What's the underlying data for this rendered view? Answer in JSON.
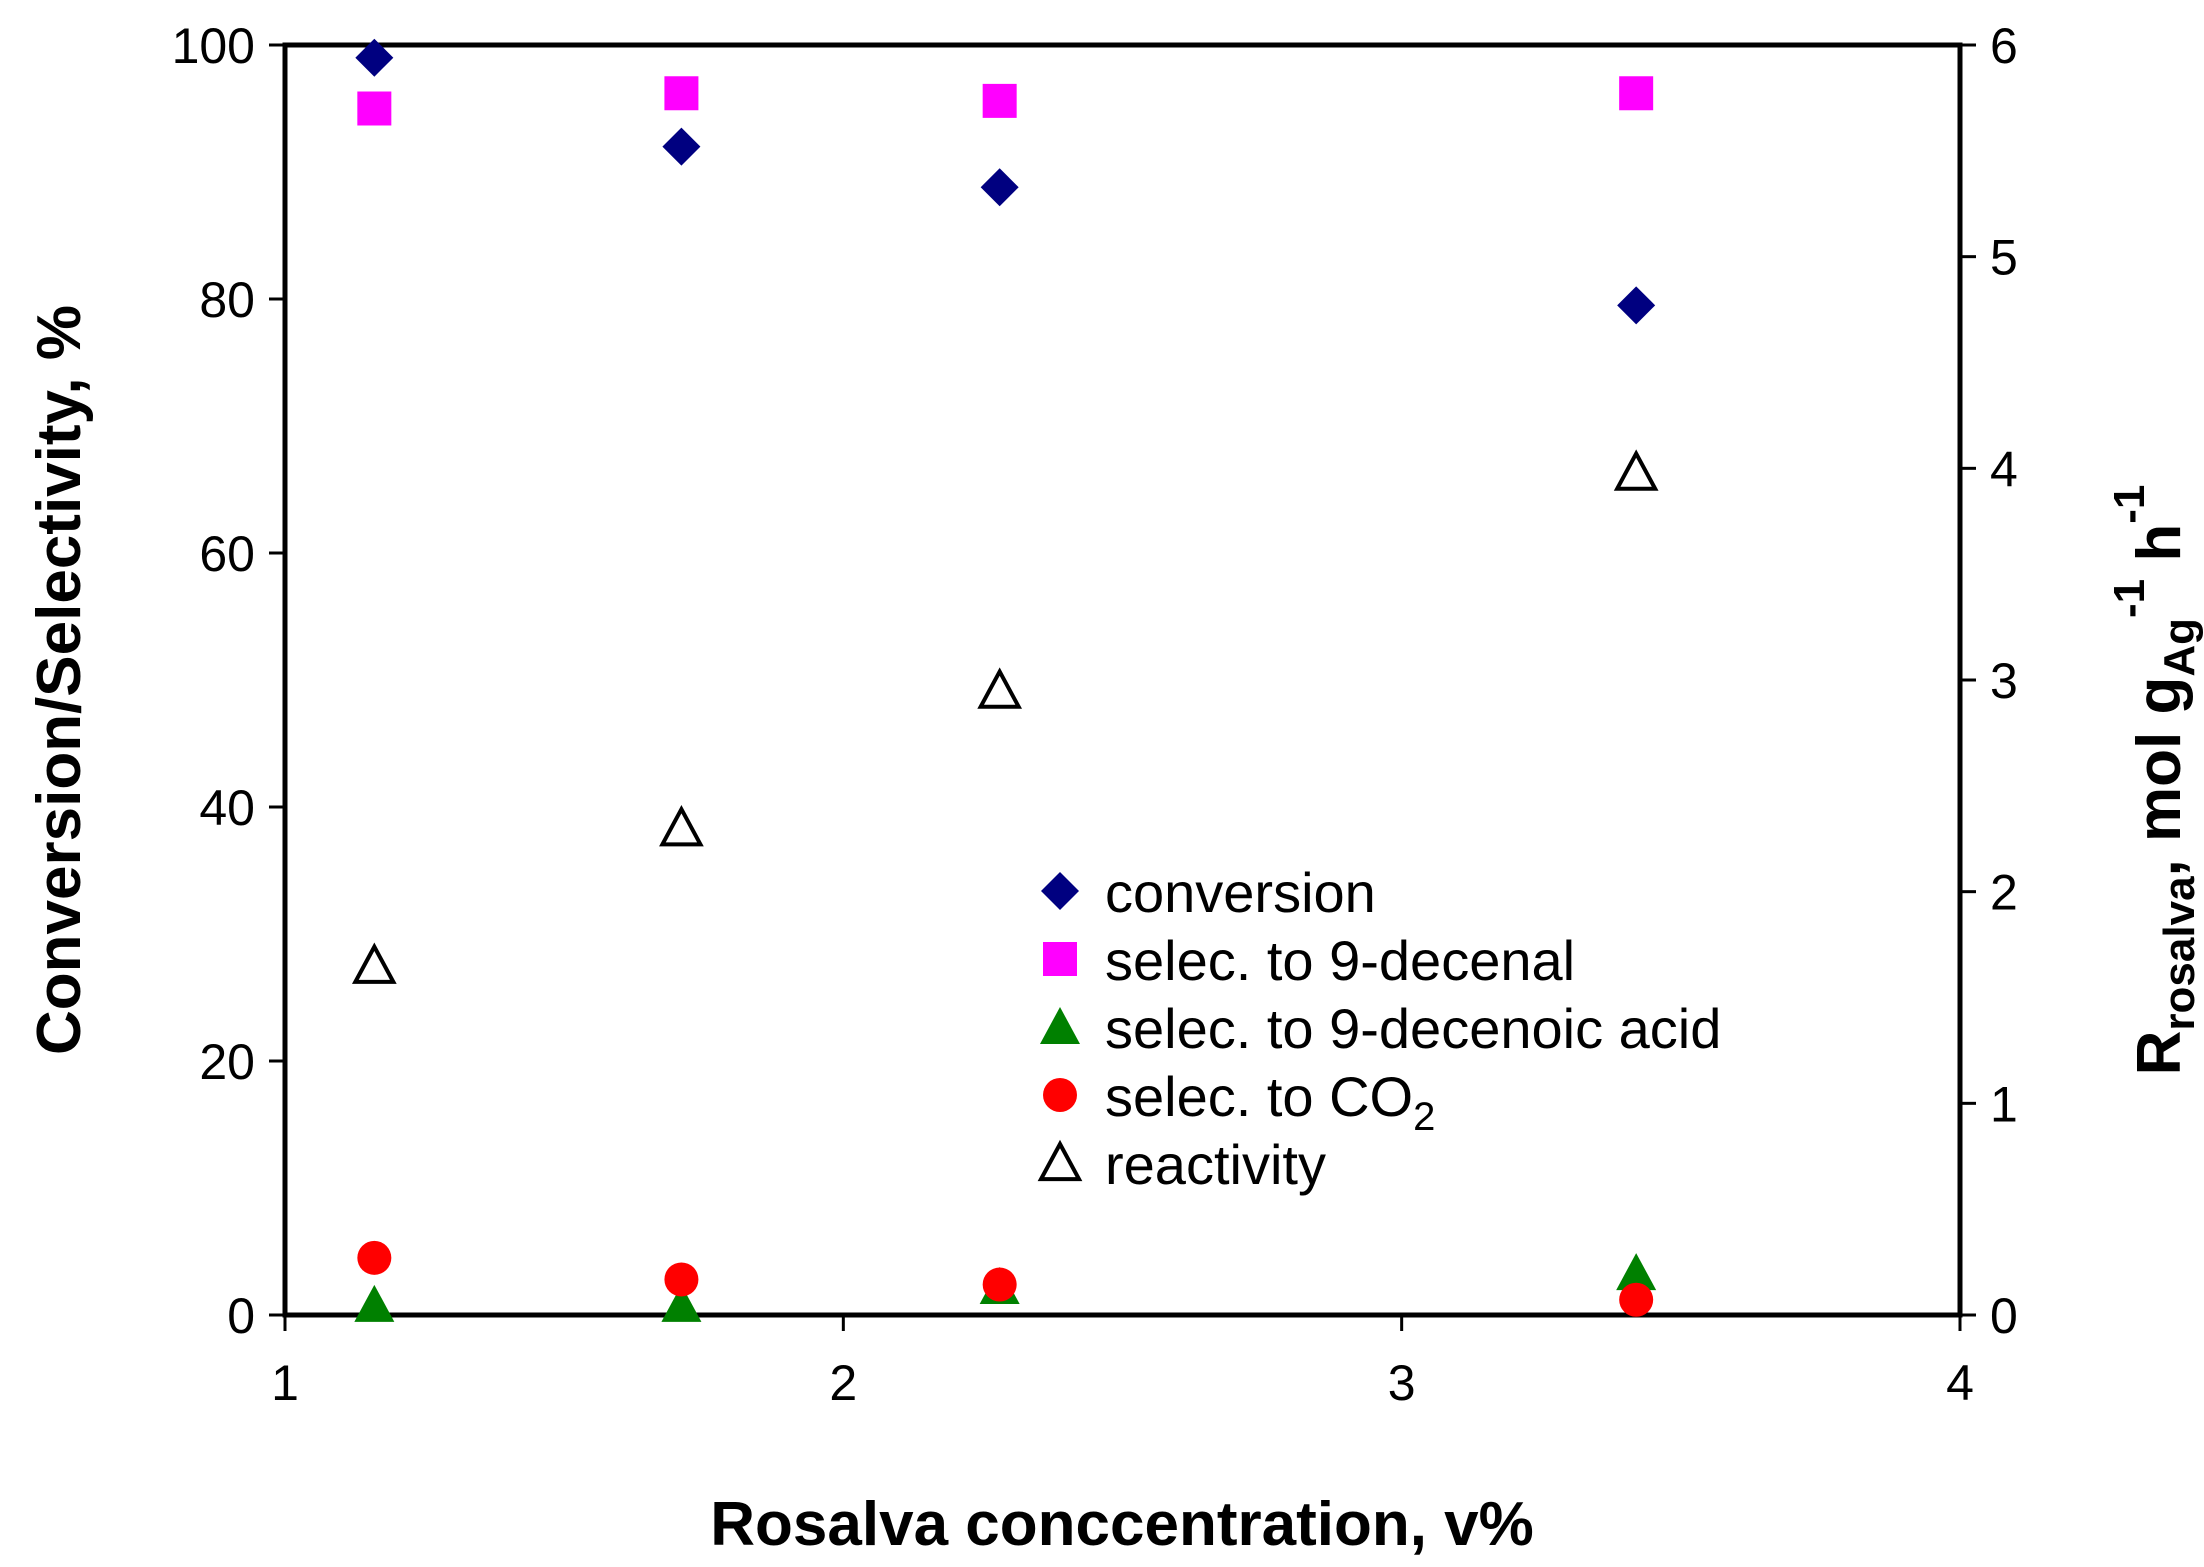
{
  "chart_data": {
    "type": "scatter",
    "xlabel": "Rosalva conccentration, v%",
    "ylabel": "Conversion/Selectivity, %",
    "y2label": {
      "main": "R",
      "sub1": "rosalva",
      "mid": ", mol g",
      "sub2": "Ag",
      "sup1": "-1",
      "end": " h",
      "sup2": "-1"
    },
    "xlim": [
      1,
      4
    ],
    "ylim": [
      0,
      100
    ],
    "y2lim": [
      0,
      6
    ],
    "xticks": [
      "1",
      "2",
      "3",
      "4"
    ],
    "yticks": [
      "0",
      "20",
      "40",
      "60",
      "80",
      "100"
    ],
    "y2ticks": [
      "0",
      "1",
      "2",
      "3",
      "4",
      "5",
      "6"
    ],
    "legend_position": "center-right",
    "series": [
      {
        "name": "conversion",
        "marker": "diamond",
        "color": "#000080",
        "axis": "left",
        "x": [
          1.16,
          1.71,
          2.28,
          3.42
        ],
        "y": [
          99.0,
          92.0,
          88.8,
          79.5
        ]
      },
      {
        "name": "selec. to 9-decenal",
        "marker": "square",
        "color": "#ff00ff",
        "axis": "left",
        "x": [
          1.16,
          1.71,
          2.28,
          3.42
        ],
        "y": [
          95.0,
          96.2,
          95.6,
          96.2
        ]
      },
      {
        "name": "selec. to 9-decenoic acid",
        "marker": "triangle",
        "color": "#008000",
        "axis": "left",
        "x": [
          1.16,
          1.71,
          2.28,
          3.42
        ],
        "y": [
          0.8,
          0.8,
          2.2,
          3.3
        ]
      },
      {
        "name": "selec. to CO",
        "name_sub": "2",
        "marker": "circle",
        "color": "#ff0000",
        "axis": "left",
        "x": [
          1.16,
          1.71,
          2.28,
          3.42
        ],
        "y": [
          4.5,
          2.8,
          2.4,
          1.2
        ]
      },
      {
        "name": "reactivity",
        "marker": "open-triangle",
        "color": "#000000",
        "axis": "right",
        "x": [
          1.16,
          1.71,
          2.28,
          3.42
        ],
        "y": [
          1.65,
          2.3,
          2.95,
          3.98
        ]
      }
    ]
  }
}
